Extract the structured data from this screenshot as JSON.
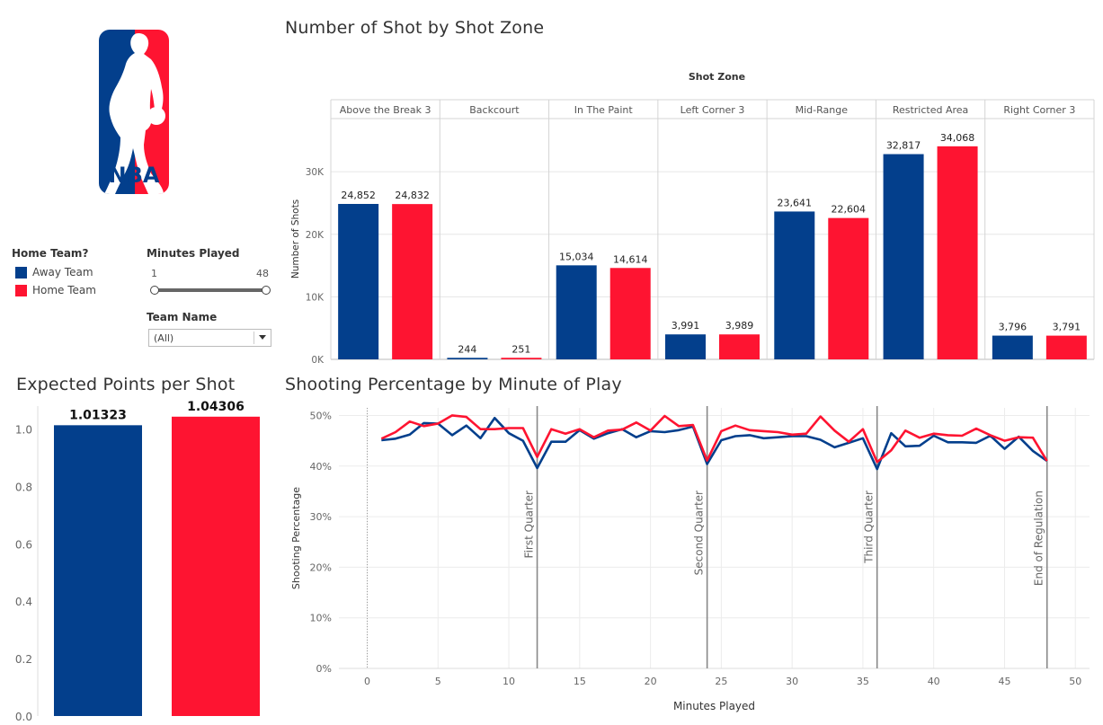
{
  "colors": {
    "away": "#033f8c",
    "home": "#fe1431",
    "grid": "#e6e6e6",
    "axis": "#999999",
    "ref": "#888888"
  },
  "logo": {
    "text": "NBA",
    "icon": "nba-logo-icon"
  },
  "filters": {
    "legend_title": "Home Team?",
    "legend_items": [
      {
        "label": "Away Team",
        "color": "#033f8c"
      },
      {
        "label": "Home Team",
        "color": "#fe1431"
      }
    ],
    "minutes_title": "Minutes Played",
    "minutes_min": "1",
    "minutes_max": "48",
    "team_title": "Team Name",
    "team_value": "(All)"
  },
  "chart_data": [
    {
      "id": "shot-zone",
      "type": "bar",
      "title": "Number of Shot by Shot Zone",
      "column_header": "Shot Zone",
      "ylabel": "Number of Shots",
      "ylim": [
        0,
        38500
      ],
      "yticks": [
        0,
        10000,
        20000,
        30000
      ],
      "ytick_labels": [
        "0K",
        "10K",
        "20K",
        "30K"
      ],
      "categories": [
        "Above the Break 3",
        "Backcourt",
        "In The Paint",
        "Left Corner 3",
        "Mid-Range",
        "Restricted Area",
        "Right Corner 3"
      ],
      "series": [
        {
          "values": [
            24852,
            244,
            15034,
            3991,
            23641,
            32817,
            3796
          ],
          "labels": [
            "24,852",
            "244",
            "15,034",
            "3,991",
            "23,641",
            "32,817",
            "3,796"
          ],
          "color": "#033f8c"
        },
        {
          "values": [
            24832,
            251,
            14614,
            3989,
            22604,
            34068,
            3791
          ],
          "labels": [
            "24,832",
            "251",
            "14,614",
            "3,989",
            "22,604",
            "34,068",
            "3,791"
          ],
          "color": "#fe1431"
        }
      ]
    },
    {
      "id": "expected-points",
      "type": "bar",
      "title": "Expected Points per Shot",
      "ylim": [
        0,
        1.08
      ],
      "yticks": [
        0,
        0.2,
        0.4,
        0.6,
        0.8,
        1.0
      ],
      "ytick_labels": [
        "0.0",
        "0.2",
        "0.4",
        "0.6",
        "0.8",
        "1.0"
      ],
      "categories": [
        "Away Team",
        "Home Team"
      ],
      "values": [
        1.01323,
        1.04306
      ],
      "labels": [
        "1.01323",
        "1.04306"
      ],
      "colors": [
        "#033f8c",
        "#fe1431"
      ]
    },
    {
      "id": "shooting-pct",
      "type": "line",
      "title": "Shooting Percentage by Minute of Play",
      "xlabel": "Minutes Played",
      "ylabel": "Shooting Percentage",
      "xlim": [
        -2,
        51
      ],
      "ylim": [
        0,
        51.5
      ],
      "xticks": [
        0,
        5,
        10,
        15,
        20,
        25,
        30,
        35,
        40,
        45,
        50
      ],
      "xtick_labels": [
        "0",
        "5",
        "10",
        "15",
        "20",
        "25",
        "30",
        "35",
        "40",
        "45",
        "50"
      ],
      "yticks": [
        0,
        10,
        20,
        30,
        40,
        50
      ],
      "ytick_labels": [
        "0%",
        "10%",
        "20%",
        "30%",
        "40%",
        "50%"
      ],
      "reference_lines": [
        {
          "x": 12,
          "label": "First Quarter"
        },
        {
          "x": 24,
          "label": "Second Quarter"
        },
        {
          "x": 36,
          "label": "Third Quarter"
        },
        {
          "x": 48,
          "label": "End of Regulation"
        }
      ],
      "x": [
        1,
        2,
        3,
        4,
        5,
        6,
        7,
        8,
        9,
        10,
        11,
        12,
        13,
        14,
        15,
        16,
        17,
        18,
        19,
        20,
        21,
        22,
        23,
        24,
        25,
        26,
        27,
        28,
        29,
        30,
        31,
        32,
        33,
        34,
        35,
        36,
        37,
        38,
        39,
        40,
        41,
        42,
        43,
        44,
        45,
        46,
        47,
        48
      ],
      "series": [
        {
          "color": "#033f8c",
          "values": [
            45.1,
            45.4,
            46.2,
            48.5,
            48.4,
            46.1,
            48.0,
            45.5,
            49.5,
            46.5,
            45.0,
            39.6,
            44.8,
            44.8,
            47.1,
            45.4,
            46.5,
            47.3,
            45.7,
            46.9,
            46.7,
            47.1,
            47.8,
            40.4,
            45.1,
            45.9,
            46.1,
            45.5,
            45.7,
            45.9,
            45.9,
            45.2,
            43.7,
            44.6,
            45.5,
            39.4,
            46.5,
            43.9,
            44.0,
            46.0,
            44.7,
            44.7,
            44.6,
            46.0,
            43.4,
            45.8,
            43.0,
            41.0
          ]
        },
        {
          "color": "#fe1431",
          "values": [
            45.4,
            46.7,
            48.8,
            47.9,
            48.4,
            50.0,
            49.7,
            47.3,
            47.3,
            47.5,
            47.5,
            41.8,
            47.3,
            46.4,
            47.3,
            45.7,
            47.0,
            47.2,
            48.6,
            47.0,
            49.9,
            47.9,
            48.1,
            41.1,
            46.9,
            48.0,
            47.1,
            46.9,
            46.7,
            46.2,
            46.4,
            49.8,
            47.0,
            44.8,
            47.3,
            40.8,
            43.1,
            47.0,
            45.6,
            46.4,
            46.1,
            46.0,
            47.4,
            46.1,
            45.0,
            45.7,
            45.6,
            41.0
          ]
        }
      ]
    }
  ]
}
